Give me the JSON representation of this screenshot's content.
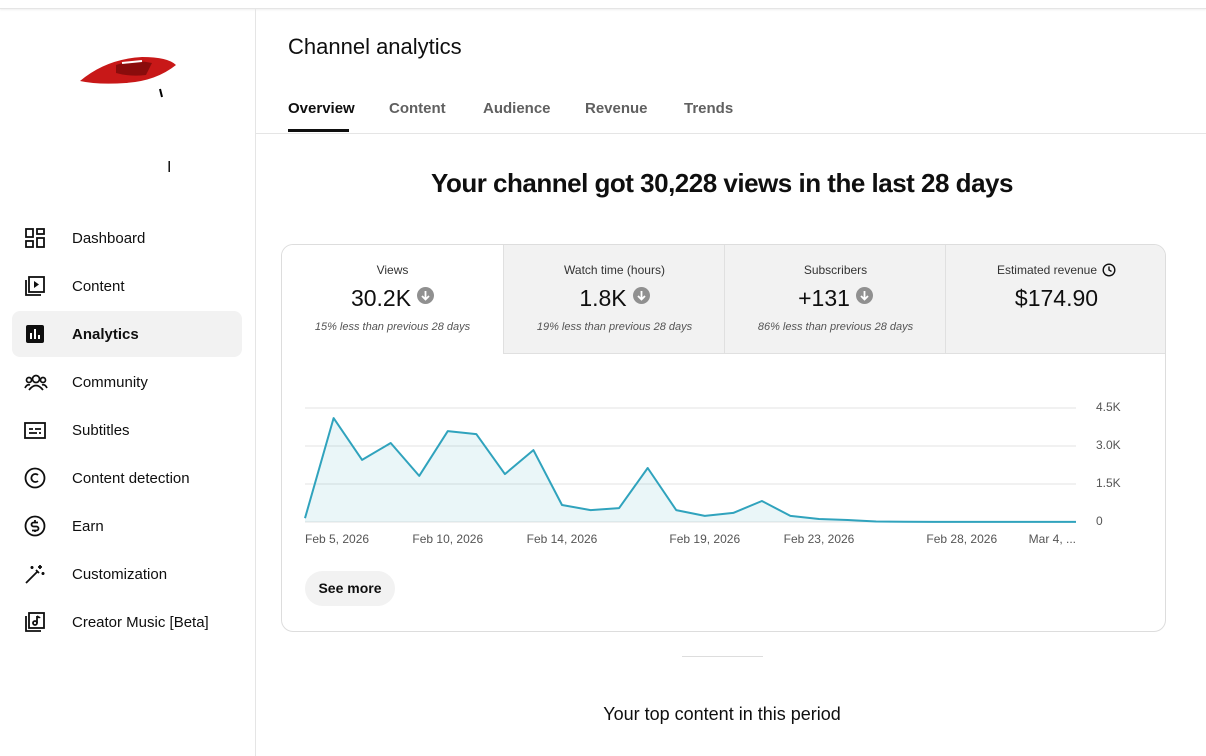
{
  "header": {
    "title": "Channel analytics",
    "tabs": [
      "Overview",
      "Content",
      "Audience",
      "Revenue",
      "Trends"
    ]
  },
  "sidebar": {
    "channel_name": "I",
    "items": [
      "Dashboard",
      "Content",
      "Analytics",
      "Community",
      "Subtitles",
      "Content detection",
      "Earn",
      "Customization",
      "Creator Music [Beta]"
    ]
  },
  "headline": "Your channel got 30,228 views in the last 28 days",
  "metrics": [
    {
      "label": "Views",
      "value": "30.2K",
      "note": "15% less than previous 28 days"
    },
    {
      "label": "Watch time (hours)",
      "value": "1.8K",
      "note": "19% less than previous 28 days"
    },
    {
      "label": "Subscribers",
      "value": "+131",
      "note": "86% less than previous 28 days"
    },
    {
      "label": "Estimated revenue",
      "value": "$174.90"
    }
  ],
  "chart_data": {
    "type": "line",
    "categories": [
      "Feb 5, 2026",
      null,
      null,
      null,
      null,
      "Feb 10, 2026",
      null,
      null,
      null,
      "Feb 14, 2026",
      null,
      null,
      null,
      null,
      "Feb 19, 2026",
      null,
      null,
      null,
      "Feb 23, 2026",
      null,
      null,
      null,
      null,
      "Feb 28, 2026",
      null,
      null,
      null,
      "Mar 4, ..."
    ],
    "values": [
      150,
      4100,
      2450,
      3120,
      1820,
      3590,
      3470,
      1890,
      2840,
      670,
      470,
      550,
      2130,
      470,
      240,
      360,
      830,
      240,
      120,
      80,
      20,
      10,
      5,
      5,
      5,
      5,
      5,
      5
    ],
    "color": "#30a3bd",
    "ylim": [
      0,
      4500
    ],
    "yticks": [
      0,
      {
        "value": 1500,
        "label": "1.5K"
      },
      {
        "value": 3000,
        "label": "3.0K"
      },
      {
        "value": 4500,
        "label": "4.5K"
      }
    ],
    "grid": true
  },
  "see_more": "See more",
  "section_title": "Your top content in this period"
}
